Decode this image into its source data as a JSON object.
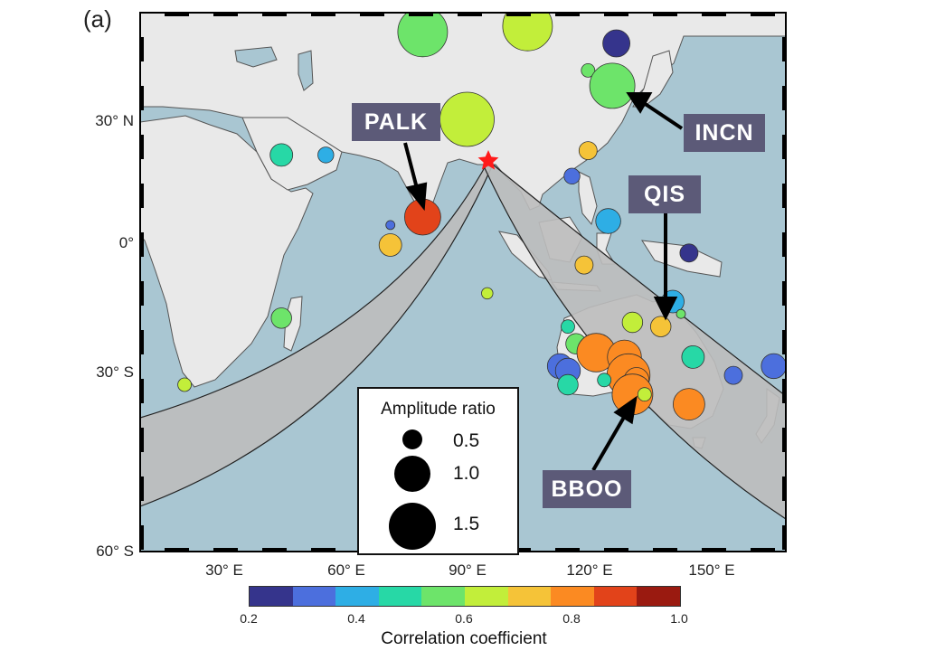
{
  "panel_label": "(a)",
  "map": {
    "source_marker": "red-star",
    "ocean_color": "#a9c6d2",
    "land_color": "#e9e9e9",
    "path_band_color": "#bdbdbd",
    "lat_labels": [
      "30° N",
      "0°",
      "30° S",
      "60° S"
    ],
    "lon_labels": [
      "30° E",
      "60° E",
      "90° E",
      "120° E",
      "150° E"
    ]
  },
  "stations": [
    {
      "name": "PALK",
      "box_color": "#5c5a78"
    },
    {
      "name": "INCN",
      "box_color": "#5c5a78"
    },
    {
      "name": "QIS",
      "box_color": "#5c5a78"
    },
    {
      "name": "BBOO",
      "box_color": "#5c5a78"
    }
  ],
  "legend": {
    "title": "Amplitude ratio",
    "entries": [
      "0.5",
      "1.0",
      "1.5"
    ]
  },
  "colorbar": {
    "label": "Correlation coefficient",
    "ticks": [
      "0.2",
      "0.4",
      "0.6",
      "0.8",
      "1.0"
    ],
    "colors": [
      "#35348c",
      "#4c6fdd",
      "#2eaee5",
      "#27d8a6",
      "#6de46a",
      "#c2ee3a",
      "#f5c338",
      "#fb8a22",
      "#e2431a",
      "#9a1a10"
    ]
  },
  "chart_data": {
    "type": "scatter",
    "title": "",
    "xlabel": "",
    "ylabel": "",
    "xlim": [
      10,
      170
    ],
    "ylim": [
      -60,
      50
    ],
    "color_scale": [
      0.2,
      1.0
    ],
    "points": [
      {
        "lon": 80,
        "lat": 47,
        "ratio": 1.1,
        "corr": 0.52
      },
      {
        "lon": 106,
        "lat": 48,
        "ratio": 1.1,
        "corr": 0.65
      },
      {
        "lon": 128,
        "lat": 45,
        "ratio": 0.6,
        "corr": 0.22
      },
      {
        "lon": 121,
        "lat": 40,
        "ratio": 0.3,
        "corr": 0.58
      },
      {
        "lon": 127,
        "lat": 37,
        "ratio": 1.0,
        "corr": 0.6
      },
      {
        "lon": 91,
        "lat": 30,
        "ratio": 1.2,
        "corr": 0.66
      },
      {
        "lon": 45,
        "lat": 22,
        "ratio": 0.5,
        "corr": 0.5
      },
      {
        "lon": 56,
        "lat": 22,
        "ratio": 0.35,
        "corr": 0.42
      },
      {
        "lon": 121,
        "lat": 23,
        "ratio": 0.4,
        "corr": 0.75
      },
      {
        "lon": 117,
        "lat": 17,
        "ratio": 0.35,
        "corr": 0.3
      },
      {
        "lon": 80,
        "lat": 7,
        "ratio": 0.8,
        "corr": 0.88
      },
      {
        "lon": 72,
        "lat": 5,
        "ratio": 0.2,
        "corr": 0.3
      },
      {
        "lon": 72,
        "lat": 0,
        "ratio": 0.5,
        "corr": 0.73
      },
      {
        "lon": 126,
        "lat": 6,
        "ratio": 0.55,
        "corr": 0.4
      },
      {
        "lon": 120,
        "lat": -5,
        "ratio": 0.4,
        "corr": 0.72
      },
      {
        "lon": 146,
        "lat": -2,
        "ratio": 0.4,
        "corr": 0.22
      },
      {
        "lon": 96,
        "lat": -12,
        "ratio": 0.25,
        "corr": 0.62
      },
      {
        "lon": 45,
        "lat": -18,
        "ratio": 0.45,
        "corr": 0.55
      },
      {
        "lon": 142,
        "lat": -14,
        "ratio": 0.5,
        "corr": 0.38
      },
      {
        "lon": 144,
        "lat": -17,
        "ratio": 0.2,
        "corr": 0.55
      },
      {
        "lon": 132,
        "lat": -19,
        "ratio": 0.45,
        "corr": 0.65
      },
      {
        "lon": 139,
        "lat": -20,
        "ratio": 0.45,
        "corr": 0.68
      },
      {
        "lon": 116,
        "lat": -20,
        "ratio": 0.3,
        "corr": 0.5
      },
      {
        "lon": 118,
        "lat": -24,
        "ratio": 0.45,
        "corr": 0.55
      },
      {
        "lon": 123,
        "lat": -26,
        "ratio": 0.85,
        "corr": 0.8
      },
      {
        "lon": 130,
        "lat": -27,
        "ratio": 0.75,
        "corr": 0.8
      },
      {
        "lon": 147,
        "lat": -27,
        "ratio": 0.5,
        "corr": 0.45
      },
      {
        "lon": 114,
        "lat": -29,
        "ratio": 0.55,
        "corr": 0.33
      },
      {
        "lon": 116,
        "lat": -30,
        "ratio": 0.55,
        "corr": 0.3
      },
      {
        "lon": 131,
        "lat": -31,
        "ratio": 0.95,
        "corr": 0.8
      },
      {
        "lon": 133,
        "lat": -32,
        "ratio": 0.55,
        "corr": 0.8
      },
      {
        "lon": 125,
        "lat": -32,
        "ratio": 0.3,
        "corr": 0.45
      },
      {
        "lon": 116,
        "lat": -33,
        "ratio": 0.45,
        "corr": 0.5
      },
      {
        "lon": 132,
        "lat": -35,
        "ratio": 0.9,
        "corr": 0.8
      },
      {
        "lon": 146,
        "lat": -37,
        "ratio": 0.7,
        "corr": 0.8
      },
      {
        "lon": 135,
        "lat": -35,
        "ratio": 0.3,
        "corr": 0.65
      },
      {
        "lon": 157,
        "lat": -31,
        "ratio": 0.4,
        "corr": 0.3
      },
      {
        "lon": 167,
        "lat": -29,
        "ratio": 0.55,
        "corr": 0.3
      },
      {
        "lon": 21,
        "lat": -33,
        "ratio": 0.3,
        "corr": 0.65
      }
    ]
  }
}
